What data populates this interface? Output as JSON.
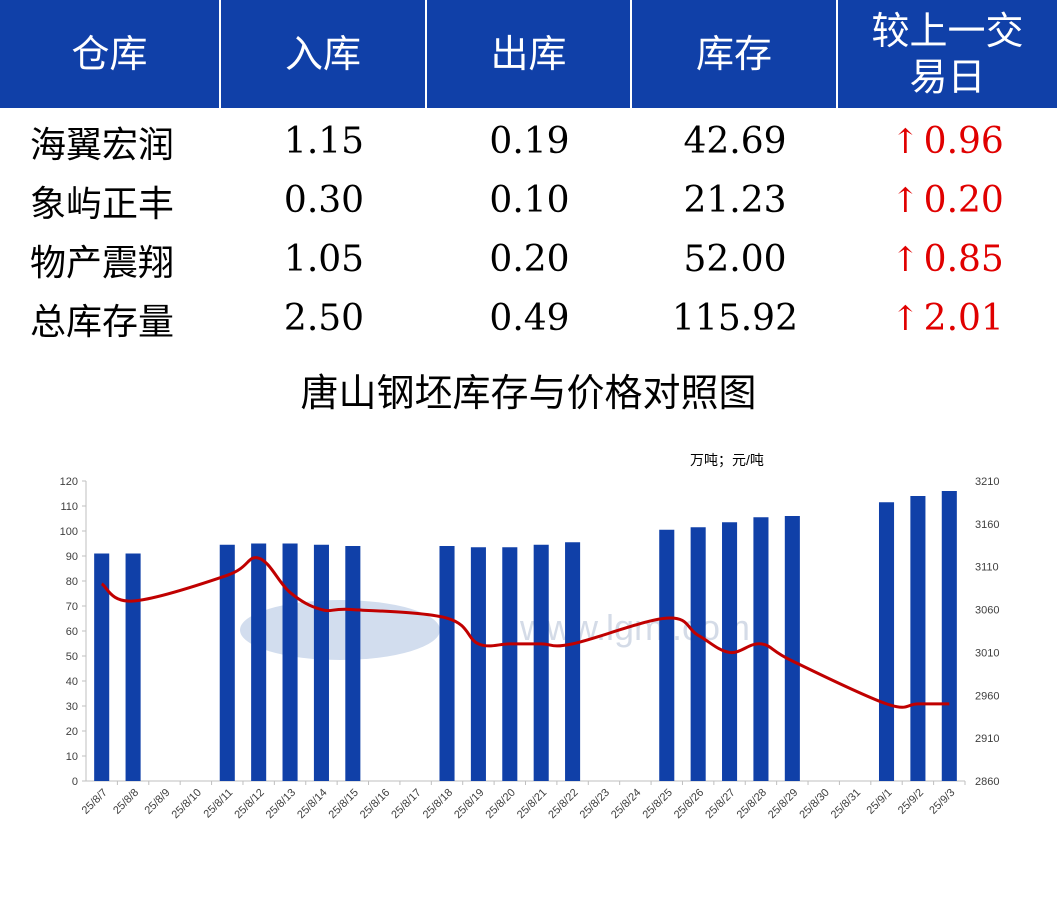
{
  "table": {
    "headers": [
      "仓库",
      "入库",
      "出库",
      "库存",
      "较上一交易日"
    ],
    "rows": [
      {
        "name": "海翼宏润",
        "in": "1.15",
        "out": "0.19",
        "stock": "42.69",
        "change": "0.96"
      },
      {
        "name": "象屿正丰",
        "in": "0.30",
        "out": "0.10",
        "stock": "21.23",
        "change": "0.20"
      },
      {
        "name": "物产震翔",
        "in": "1.05",
        "out": "0.20",
        "stock": "52.00",
        "change": "0.85"
      },
      {
        "name": "总库存量",
        "in": "2.50",
        "out": "0.49",
        "stock": "115.92",
        "change": "2.01"
      }
    ],
    "change_color": "#e00000",
    "header_color": "#1040a8"
  },
  "watermark": "www.lgmi.com",
  "chart_data": {
    "type": "bar",
    "title": "唐山钢坯库存与价格对照图",
    "unit_label": "万吨；元/吨",
    "categories": [
      "25/8/7",
      "25/8/8",
      "25/8/9",
      "25/8/10",
      "25/8/11",
      "25/8/12",
      "25/8/13",
      "25/8/14",
      "25/8/15",
      "25/8/16",
      "25/8/17",
      "25/8/18",
      "25/8/19",
      "25/8/20",
      "25/8/21",
      "25/8/22",
      "25/8/23",
      "25/8/24",
      "25/8/25",
      "25/8/26",
      "25/8/27",
      "25/8/28",
      "25/8/29",
      "25/8/30",
      "25/8/31",
      "25/9/1",
      "25/9/2",
      "25/9/3"
    ],
    "series": [
      {
        "type": "bar",
        "axis": "left",
        "color": "#1040a8",
        "values": [
          91,
          91,
          null,
          null,
          94.5,
          95,
          95,
          94.5,
          94,
          null,
          null,
          94,
          93.5,
          93.5,
          94.5,
          95.5,
          null,
          null,
          100.5,
          101.5,
          103.5,
          105.5,
          106,
          null,
          null,
          111.5,
          114,
          116
        ]
      },
      {
        "type": "line",
        "axis": "right",
        "color": "#c00000",
        "values": [
          3090,
          3070,
          null,
          null,
          3100,
          3120,
          3080,
          3060,
          3060,
          null,
          null,
          3050,
          3020,
          3020,
          3020,
          3020,
          null,
          null,
          3050,
          3030,
          3010,
          3020,
          3000,
          null,
          null,
          2950,
          2950,
          2950
        ]
      }
    ],
    "ylim_left": [
      0,
      120
    ],
    "yticks_left": [
      0,
      10,
      20,
      30,
      40,
      50,
      60,
      70,
      80,
      90,
      100,
      110,
      120
    ],
    "ylim_right": [
      2860,
      3210
    ],
    "yticks_right": [
      2860,
      2910,
      2960,
      3010,
      3060,
      3110,
      3160,
      3210
    ],
    "grid": false,
    "legend": "none"
  }
}
